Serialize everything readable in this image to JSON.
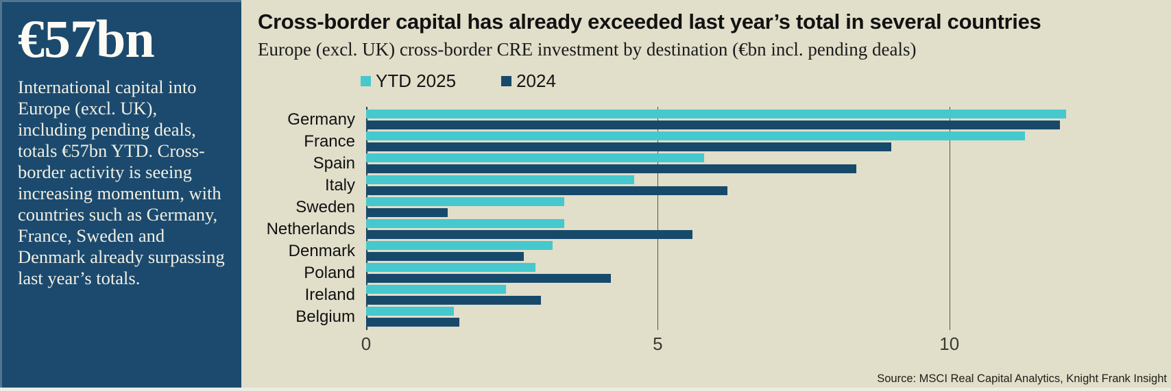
{
  "stat_panel": {
    "value": "€57bn",
    "description": "International capital into Europe (excl. UK), including pending deals, totals €57bn YTD. Cross-border activity is seeing increasing momentum, with countries such as Germany, France, Sweden and Denmark already surpassing last year’s totals."
  },
  "chart_panel": {
    "title": "Cross-border capital has already exceeded last year’s total in several countries",
    "subtitle": "Europe (excl. UK) cross-border CRE investment by destination (€bn incl. pending deals)",
    "source": "Source: MSCI Real Capital Analytics, Knight Frank Insight"
  },
  "colors": {
    "panel_navy": "#1B4A6E",
    "background_beige": "#E1DECA",
    "accent_teal": "#45C8CE",
    "accent_navy": "#17496B",
    "axis_line": "#3D3D33",
    "gridline": "#55544A"
  },
  "chart_data": {
    "type": "bar",
    "orientation": "horizontal",
    "title": "Cross-border capital has already exceeded last year’s total in several countries",
    "subtitle": "Europe (excl. UK) cross-border CRE investment by destination (€bn incl. pending deals)",
    "categories": [
      "Germany",
      "France",
      "Spain",
      "Italy",
      "Sweden",
      "Netherlands",
      "Denmark",
      "Poland",
      "Ireland",
      "Belgium"
    ],
    "series": [
      {
        "name": "YTD 2025",
        "color": "#45C8CE",
        "values": [
          12.0,
          11.3,
          5.8,
          4.6,
          3.4,
          3.4,
          3.2,
          2.9,
          2.4,
          1.5
        ]
      },
      {
        "name": "2024",
        "color": "#17496B",
        "values": [
          11.9,
          9.0,
          8.4,
          6.2,
          1.4,
          5.6,
          2.7,
          4.2,
          3.0,
          1.6
        ]
      }
    ],
    "xlabel": "",
    "ylabel": "",
    "x_ticks": [
      0,
      5,
      10
    ],
    "xlim": [
      0,
      13.8
    ],
    "grid": "vertical",
    "legend_position": "top",
    "source": "Source: MSCI Real Capital Analytics, Knight Frank Insight"
  }
}
